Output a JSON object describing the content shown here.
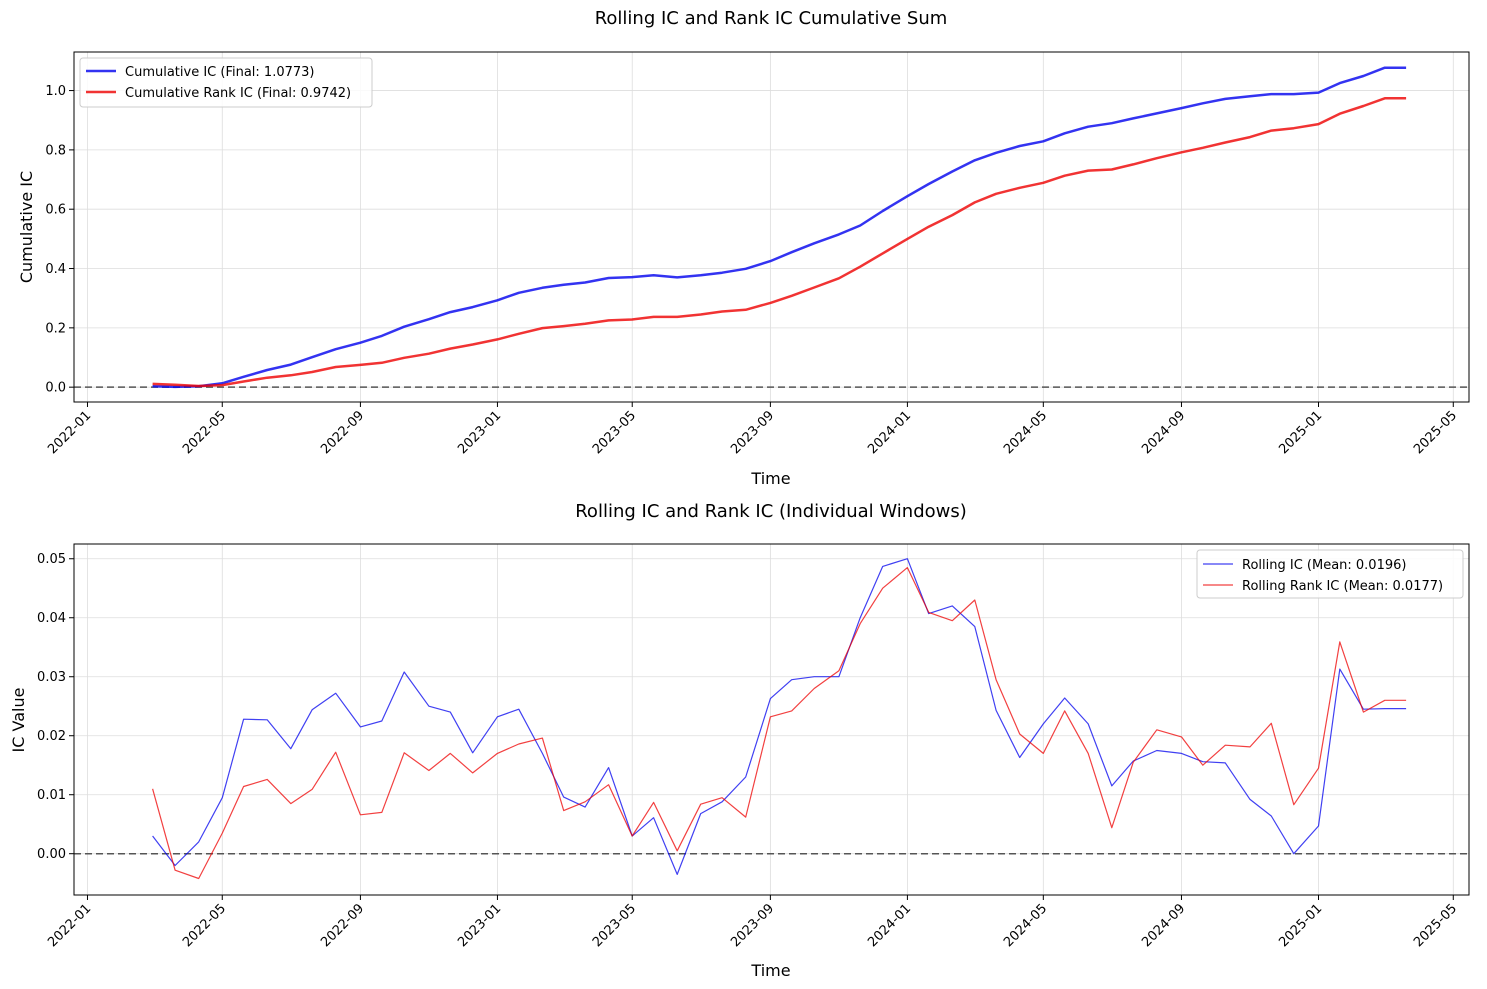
{
  "chart_data": [
    {
      "type": "line",
      "title": "Rolling IC and Rank IC Cumulative Sum",
      "xlabel": "Time",
      "ylabel": "Cumulative IC",
      "xlim": [
        "2021-12-20",
        "2025-05-15"
      ],
      "ylim": [
        -0.05,
        1.13
      ],
      "grid": true,
      "legend_position": "upper-left",
      "x_ticks": [
        "2022-01",
        "2022-05",
        "2022-09",
        "2023-01",
        "2023-05",
        "2023-09",
        "2024-01",
        "2024-05",
        "2024-09",
        "2025-01",
        "2025-05"
      ],
      "y_ticks": [
        "0.0",
        "0.2",
        "0.4",
        "0.6",
        "0.8",
        "1.0"
      ],
      "y_tick_values": [
        0,
        0.2,
        0.4,
        0.6,
        0.8,
        1.0
      ],
      "hline": 0,
      "x": [
        "2022-02-28",
        "2022-03-20",
        "2022-04-10",
        "2022-05-01",
        "2022-05-20",
        "2022-06-10",
        "2022-07-01",
        "2022-07-20",
        "2022-08-10",
        "2022-09-01",
        "2022-09-20",
        "2022-10-10",
        "2022-11-01",
        "2022-11-20",
        "2022-12-10",
        "2023-01-01",
        "2023-01-20",
        "2023-02-10",
        "2023-03-01",
        "2023-03-20",
        "2023-04-10",
        "2023-05-01",
        "2023-05-20",
        "2023-06-10",
        "2023-07-01",
        "2023-07-20",
        "2023-08-10",
        "2023-09-01",
        "2023-09-20",
        "2023-10-10",
        "2023-11-01",
        "2023-11-20",
        "2023-12-10",
        "2024-01-01",
        "2024-01-20",
        "2024-02-10",
        "2024-03-01",
        "2024-03-20",
        "2024-04-10",
        "2024-05-01",
        "2024-05-20",
        "2024-06-10",
        "2024-07-01",
        "2024-07-20",
        "2024-08-10",
        "2024-09-01",
        "2024-09-20",
        "2024-10-10",
        "2024-11-01",
        "2024-11-20",
        "2024-12-10",
        "2025-01-01",
        "2025-01-20",
        "2025-02-10",
        "2025-03-01",
        "2025-03-20"
      ],
      "series": [
        {
          "name": "Cumulative IC (Final: 1.0773)",
          "color": "#0000ee",
          "values": [
            0.003,
            0.001,
            0.003,
            0.013,
            0.035,
            0.058,
            0.076,
            0.101,
            0.128,
            0.15,
            0.173,
            0.204,
            0.229,
            0.253,
            0.27,
            0.293,
            0.318,
            0.335,
            0.345,
            0.353,
            0.368,
            0.371,
            0.377,
            0.37,
            0.377,
            0.386,
            0.399,
            0.425,
            0.455,
            0.485,
            0.515,
            0.545,
            0.594,
            0.644,
            0.685,
            0.727,
            0.765,
            0.79,
            0.813,
            0.829,
            0.856,
            0.878,
            0.89,
            0.906,
            0.923,
            0.941,
            0.957,
            0.972,
            0.981,
            0.988,
            0.988,
            0.993,
            1.025,
            1.049,
            1.077,
            1.077
          ]
        },
        {
          "name": "Cumulative Rank IC (Final: 0.9742)",
          "color": "#ee0000",
          "values": [
            0.011,
            0.008,
            0.004,
            0.007,
            0.019,
            0.032,
            0.04,
            0.051,
            0.068,
            0.075,
            0.082,
            0.099,
            0.113,
            0.13,
            0.144,
            0.161,
            0.18,
            0.199,
            0.206,
            0.214,
            0.225,
            0.228,
            0.237,
            0.237,
            0.245,
            0.255,
            0.261,
            0.284,
            0.308,
            0.336,
            0.367,
            0.406,
            0.451,
            0.5,
            0.541,
            0.58,
            0.623,
            0.652,
            0.672,
            0.689,
            0.713,
            0.73,
            0.734,
            0.751,
            0.772,
            0.792,
            0.807,
            0.825,
            0.843,
            0.865,
            0.873,
            0.887,
            0.922,
            0.948,
            0.974,
            0.974
          ]
        }
      ]
    },
    {
      "type": "line",
      "title": "Rolling IC and Rank IC (Individual Windows)",
      "xlabel": "Time",
      "ylabel": "IC Value",
      "xlim": [
        "2021-12-20",
        "2025-05-15"
      ],
      "ylim": [
        -0.007,
        0.0525
      ],
      "grid": true,
      "legend_position": "upper-right",
      "x_ticks": [
        "2022-01",
        "2022-05",
        "2022-09",
        "2023-01",
        "2023-05",
        "2023-09",
        "2024-01",
        "2024-05",
        "2024-09",
        "2025-01",
        "2025-05"
      ],
      "y_ticks": [
        "0.00",
        "0.01",
        "0.02",
        "0.03",
        "0.04",
        "0.05"
      ],
      "y_tick_values": [
        0,
        0.01,
        0.02,
        0.03,
        0.04,
        0.05
      ],
      "hline": 0,
      "x": [
        "2022-02-28",
        "2022-03-20",
        "2022-04-10",
        "2022-05-01",
        "2022-05-20",
        "2022-06-10",
        "2022-07-01",
        "2022-07-20",
        "2022-08-10",
        "2022-09-01",
        "2022-09-20",
        "2022-10-10",
        "2022-11-01",
        "2022-11-20",
        "2022-12-10",
        "2023-01-01",
        "2023-01-20",
        "2023-02-10",
        "2023-03-01",
        "2023-03-20",
        "2023-04-10",
        "2023-05-01",
        "2023-05-20",
        "2023-06-10",
        "2023-07-01",
        "2023-07-20",
        "2023-08-10",
        "2023-09-01",
        "2023-09-20",
        "2023-10-10",
        "2023-11-01",
        "2023-11-20",
        "2023-12-10",
        "2024-01-01",
        "2024-01-20",
        "2024-02-10",
        "2024-03-01",
        "2024-03-20",
        "2024-04-10",
        "2024-05-01",
        "2024-05-20",
        "2024-06-10",
        "2024-07-01",
        "2024-07-20",
        "2024-08-10",
        "2024-09-01",
        "2024-09-20",
        "2024-10-10",
        "2024-11-01",
        "2024-11-20",
        "2024-12-10",
        "2025-01-01",
        "2025-01-20",
        "2025-02-10",
        "2025-03-01",
        "2025-03-20"
      ],
      "series": [
        {
          "name": "Rolling IC (Mean: 0.0196)",
          "color": "#0000ee",
          "values": [
            0.003,
            -0.002,
            0.002,
            0.0095,
            0.0228,
            0.0227,
            0.0178,
            0.0244,
            0.0272,
            0.0215,
            0.0225,
            0.0308,
            0.025,
            0.024,
            0.0171,
            0.0232,
            0.0245,
            0.017,
            0.0096,
            0.0079,
            0.0146,
            0.003,
            0.0061,
            -0.0035,
            0.0068,
            0.0088,
            0.013,
            0.0263,
            0.0295,
            0.03,
            0.03,
            0.04,
            0.0487,
            0.05,
            0.0407,
            0.042,
            0.0385,
            0.0243,
            0.0163,
            0.022,
            0.0264,
            0.022,
            0.0115,
            0.0157,
            0.0175,
            0.017,
            0.0156,
            0.0154,
            0.0092,
            0.0064,
            0.0,
            0.0047,
            0.0313,
            0.0245,
            0.0246,
            0.0246
          ]
        },
        {
          "name": "Rolling Rank IC (Mean: 0.0177)",
          "color": "#ee0000",
          "values": [
            0.011,
            -0.0028,
            -0.0042,
            0.0035,
            0.0114,
            0.0126,
            0.0085,
            0.0109,
            0.0172,
            0.0066,
            0.007,
            0.0171,
            0.0141,
            0.017,
            0.0137,
            0.017,
            0.0186,
            0.0196,
            0.0073,
            0.0088,
            0.0117,
            0.003,
            0.0087,
            0.0005,
            0.0084,
            0.0095,
            0.0062,
            0.0232,
            0.0242,
            0.028,
            0.031,
            0.039,
            0.045,
            0.0485,
            0.0409,
            0.0395,
            0.043,
            0.0295,
            0.0203,
            0.017,
            0.0242,
            0.017,
            0.0044,
            0.0155,
            0.021,
            0.0198,
            0.015,
            0.0184,
            0.0181,
            0.0221,
            0.0083,
            0.0145,
            0.0359,
            0.024,
            0.026,
            0.026
          ]
        }
      ]
    }
  ]
}
